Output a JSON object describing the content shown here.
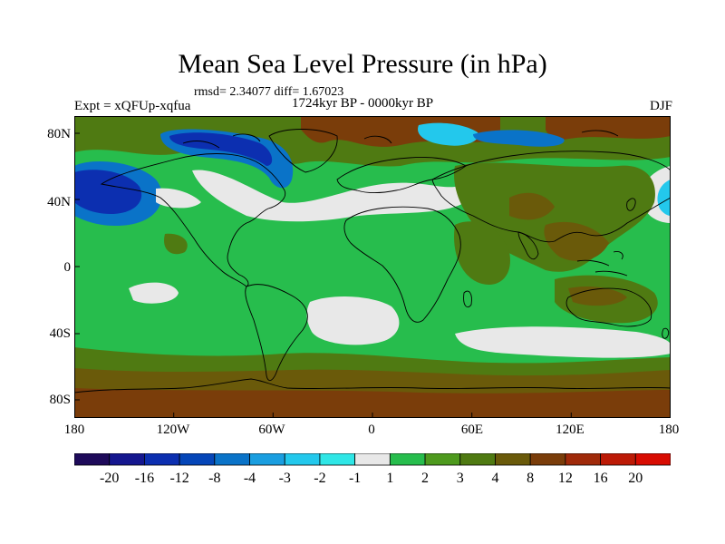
{
  "title": "Mean Sea Level Pressure (in hPa)",
  "stats": "rmsd= 2.34077 diff= 1.67023",
  "subtitle": "1724kyr BP - 0000kyr BP",
  "experiment": "Expt = xQFUp-xqfua",
  "season": "DJF",
  "y_ticks": [
    "80N",
    "40N",
    "0",
    "40S",
    "80S"
  ],
  "x_ticks": [
    "180",
    "120W",
    "60W",
    "0",
    "60E",
    "120E",
    "180"
  ],
  "colorbar": {
    "labels": [
      "-20",
      "-16",
      "-12",
      "-8",
      "-4",
      "-3",
      "-2",
      "-1",
      "1",
      "2",
      "3",
      "4",
      "8",
      "12",
      "16",
      "20"
    ],
    "colors": [
      "#1e0a5a",
      "#15178f",
      "#0c2fb0",
      "#0546b8",
      "#0a73c8",
      "#1a9ee0",
      "#23c8ec",
      "#2fe6e6",
      "#e8e8e8",
      "#27bd4d",
      "#4e9a1e",
      "#4f7a12",
      "#6a5a0a",
      "#7a3d0a",
      "#a02a0a",
      "#bc1a06",
      "#d80c02"
    ]
  },
  "map_colors": {
    "green": "#27bd4d",
    "light": "#e8e8e8",
    "olive": "#4f7a12",
    "olive_dark": "#6a5a0a",
    "brown": "#7a3d0a",
    "blue_deep": "#0c2fb0",
    "blue_mid": "#0a73c8",
    "blue_light": "#23c8ec",
    "coast": "#000000"
  }
}
